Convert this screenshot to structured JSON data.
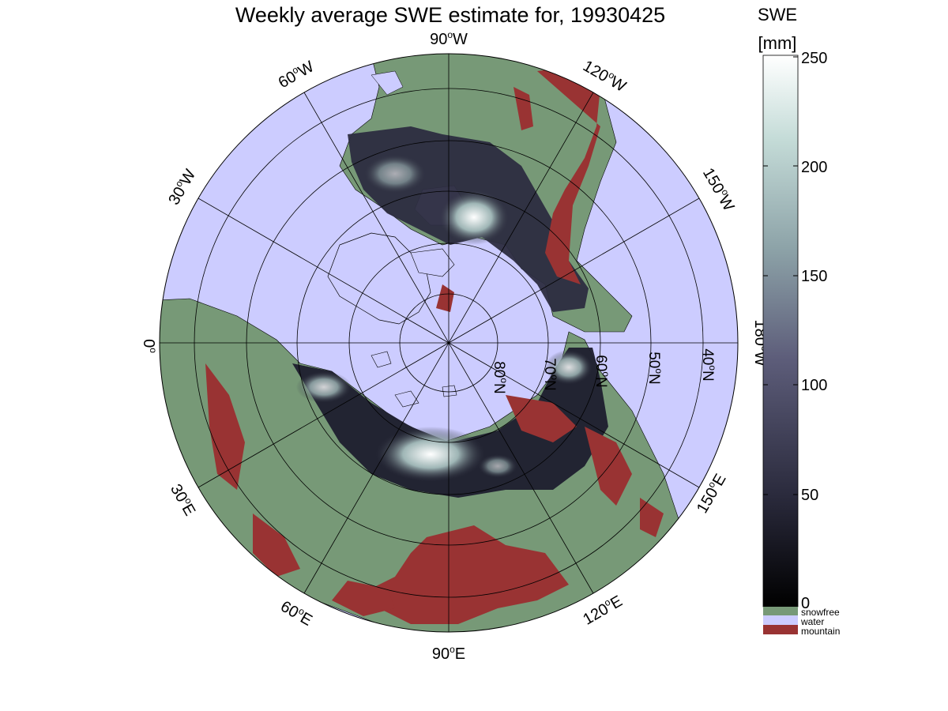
{
  "title": "Weekly average SWE estimate for, 19930425",
  "map": {
    "projection": "north polar stereographic",
    "longitude_labels": [
      {
        "text": "90",
        "suffix": "W",
        "lon": "90W"
      },
      {
        "text": "120",
        "suffix": "W",
        "lon": "120W"
      },
      {
        "text": "150",
        "suffix": "W",
        "lon": "150W"
      },
      {
        "text": "180",
        "suffix": "W",
        "lon": "180W"
      },
      {
        "text": "150",
        "suffix": "E",
        "lon": "150E"
      },
      {
        "text": "120",
        "suffix": "E",
        "lon": "120E"
      },
      {
        "text": "90",
        "suffix": "E",
        "lon": "90E"
      },
      {
        "text": "60",
        "suffix": "E",
        "lon": "60E"
      },
      {
        "text": "30",
        "suffix": "E",
        "lon": "30E"
      },
      {
        "text": "0",
        "suffix": "",
        "lon": "0"
      },
      {
        "text": "30",
        "suffix": "W",
        "lon": "30W"
      },
      {
        "text": "60",
        "suffix": "W",
        "lon": "60W"
      }
    ],
    "latitude_labels": [
      {
        "text": "80",
        "suffix": "N",
        "lat": 80
      },
      {
        "text": "70",
        "suffix": "N",
        "lat": 70
      },
      {
        "text": "60",
        "suffix": "N",
        "lat": 60
      },
      {
        "text": "50",
        "suffix": "N",
        "lat": 50
      },
      {
        "text": "40",
        "suffix": "N",
        "lat": 40
      }
    ],
    "colors": {
      "water": "#ccccff",
      "snowfree": "#779977",
      "mountain": "#993333",
      "land_outline": "#000000"
    }
  },
  "colorbar": {
    "label_line1": "SWE",
    "label_line2": "[mm]",
    "min": 0,
    "max": 250,
    "ticks": [
      "250",
      "200",
      "150",
      "100",
      "50",
      "0"
    ],
    "legend": [
      {
        "name": "snowfree",
        "color": "#779977"
      },
      {
        "name": "water",
        "color": "#ccccff"
      },
      {
        "name": "mountain",
        "color": "#993333"
      }
    ]
  }
}
